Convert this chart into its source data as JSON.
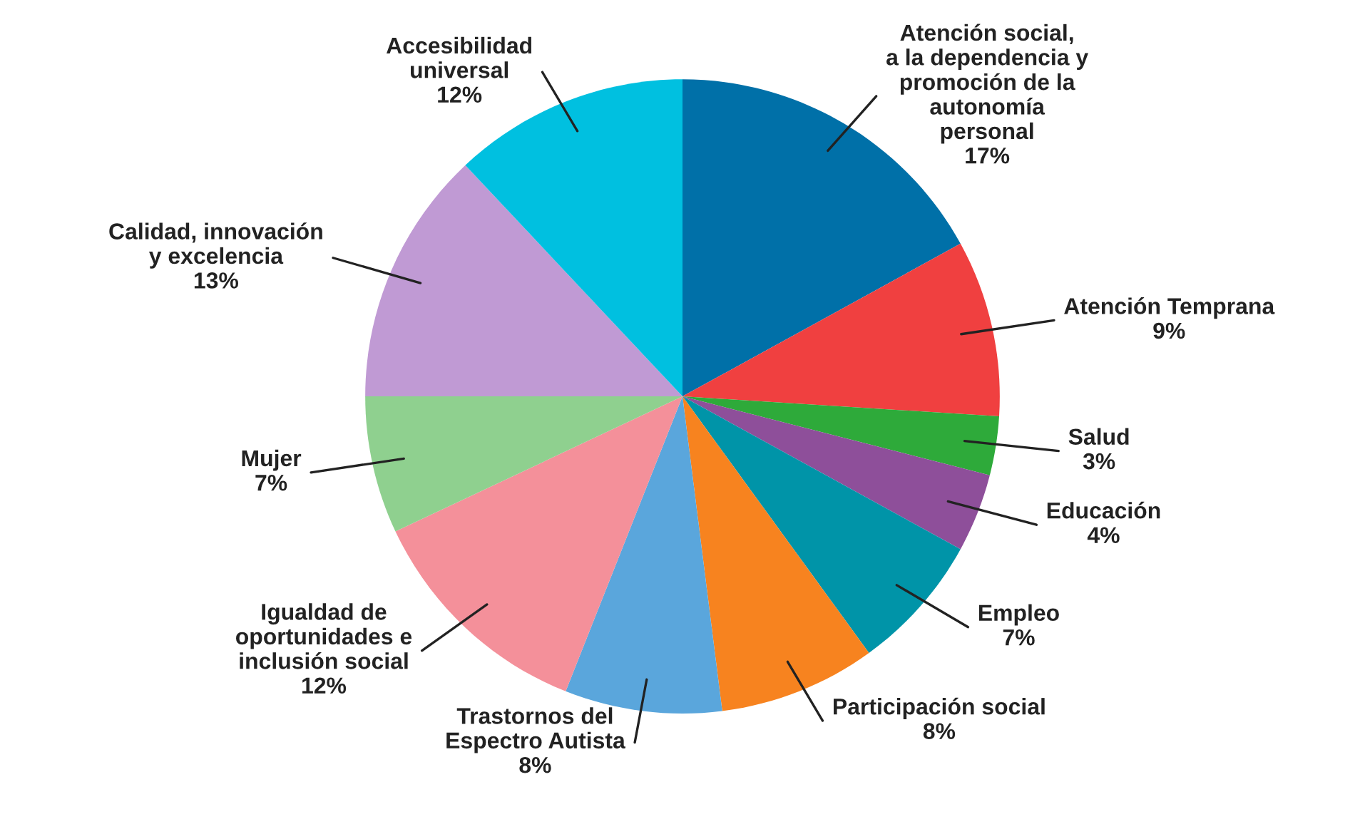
{
  "chart_data": {
    "type": "pie",
    "categories": [
      "Atención social,\na la dependencia y\npromoción de la\nautonomía\npersonal",
      "Atención Temprana",
      "Salud",
      "Educación",
      "Empleo",
      "Participación social",
      "Trastornos del\nEspectro Autista",
      "Igualdad de\noportunidades e\ninclusión social",
      "Mujer",
      "Calidad, innovación\ny excelencia",
      "Accesibilidad\nuniversal"
    ],
    "values": [
      17,
      9,
      3,
      4,
      7,
      8,
      8,
      12,
      7,
      13,
      12
    ],
    "colors": [
      "#0070a8",
      "#f04040",
      "#2eaa3a",
      "#8e4f9a",
      "#0094a8",
      "#f7831f",
      "#5aa6dc",
      "#f4909a",
      "#8fd08f",
      "#c09ad4",
      "#00c0e0"
    ],
    "value_labels": [
      "17%",
      "9%",
      "3%",
      "4%",
      "7%",
      "8%",
      "8%",
      "12%",
      "7%",
      "13%",
      "12%"
    ]
  }
}
